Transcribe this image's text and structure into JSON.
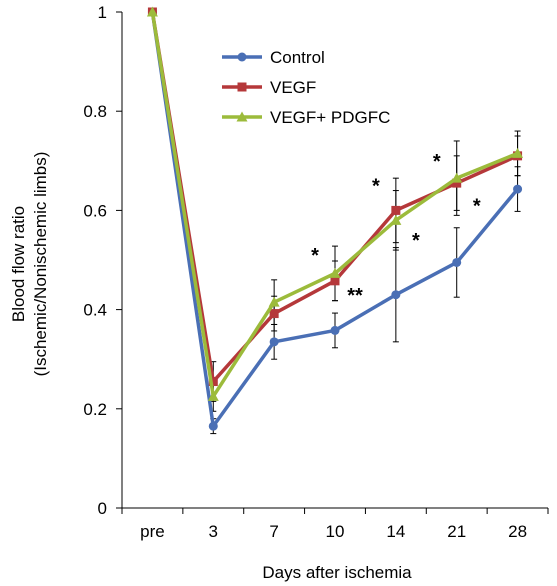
{
  "chart_data": {
    "type": "line",
    "categories": [
      "pre",
      "3",
      "7",
      "10",
      "14",
      "21",
      "28"
    ],
    "xlabel": "Days after ischemia",
    "ylabel_line1": "Blood flow ratio",
    "ylabel_line2": "(Ischemic/Nonischemic limbs)",
    "ylim": [
      0,
      1
    ],
    "yticks": [
      "0",
      "0.2",
      "0.4",
      "0.6",
      "0.8",
      "1"
    ],
    "legend_position": "top-center",
    "grid": false,
    "series": [
      {
        "name": "Control",
        "color": "#4a6fb5",
        "marker": "circle",
        "values": [
          1.0,
          0.165,
          0.335,
          0.358,
          0.43,
          0.495,
          0.643
        ],
        "errors": [
          0,
          0.015,
          0.035,
          0.035,
          0.095,
          0.07,
          0.045
        ]
      },
      {
        "name": "VEGF",
        "color": "#b5383a",
        "marker": "square",
        "values": [
          1.0,
          0.255,
          0.392,
          0.458,
          0.6,
          0.655,
          0.71
        ],
        "errors": [
          0,
          0.04,
          0.035,
          0.04,
          0.065,
          0.055,
          0.04
        ]
      },
      {
        "name": "VEGF+ PDGFC",
        "color": "#9cbb3b",
        "marker": "triangle",
        "values": [
          1.0,
          0.225,
          0.415,
          0.473,
          0.58,
          0.665,
          0.715
        ],
        "errors": [
          0,
          0.03,
          0.045,
          0.055,
          0.06,
          0.075,
          0.045
        ]
      }
    ],
    "annotations": [
      {
        "text": "*",
        "category": "10",
        "value": 0.52,
        "side": "left"
      },
      {
        "text": "**",
        "category": "10",
        "value": 0.44,
        "side": "right"
      },
      {
        "text": "*",
        "category": "14",
        "value": 0.66,
        "side": "left"
      },
      {
        "text": "*",
        "category": "14",
        "value": 0.55,
        "side": "right"
      },
      {
        "text": "*",
        "category": "21",
        "value": 0.71,
        "side": "left"
      },
      {
        "text": "*",
        "category": "21",
        "value": 0.62,
        "side": "right"
      }
    ]
  }
}
